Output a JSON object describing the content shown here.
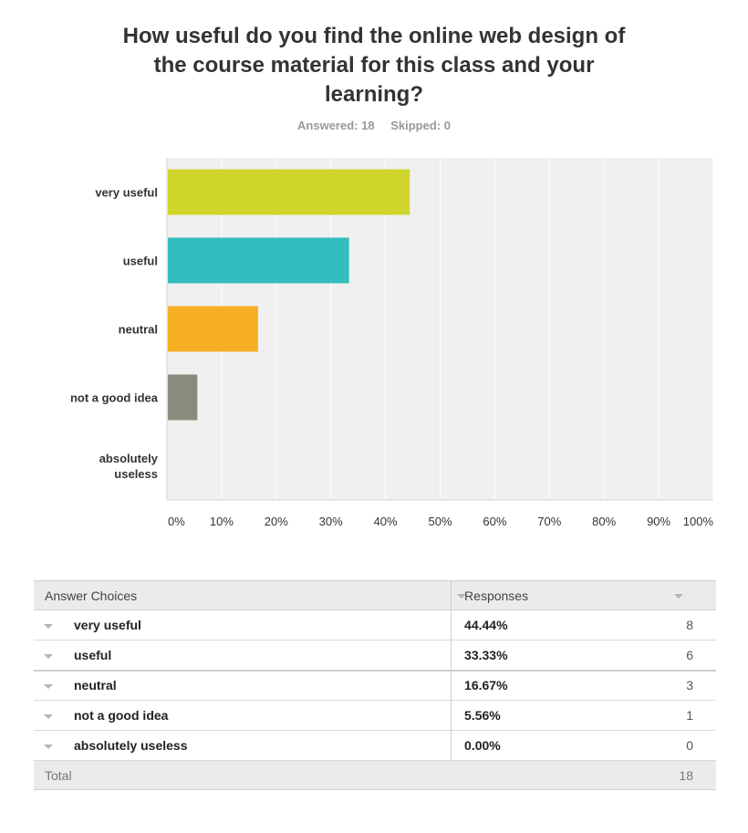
{
  "title": "How useful do you find the online web design of the course material for this class and your learning?",
  "answered": "Answered: 18",
  "skipped": "Skipped: 0",
  "chart_data": {
    "type": "bar",
    "orientation": "horizontal",
    "categories": [
      "very useful",
      "useful",
      "neutral",
      "not a good idea",
      "absolutely useless"
    ],
    "values": [
      44.44,
      33.33,
      16.67,
      5.56,
      0
    ],
    "colors": [
      "#cfd52a",
      "#33bdbf",
      "#f6ae22",
      "#8b8b7d",
      "#999999"
    ],
    "xlim": [
      0,
      100
    ],
    "xticks": [
      "0%",
      "10%",
      "20%",
      "30%",
      "40%",
      "50%",
      "60%",
      "70%",
      "80%",
      "90%",
      "100%"
    ],
    "grid": true,
    "background": "#f0f0f0"
  },
  "table": {
    "header": {
      "choices": "Answer Choices",
      "responses": "Responses"
    },
    "rows": [
      {
        "label": "very useful",
        "percent": "44.44%",
        "count": "8"
      },
      {
        "label": "useful",
        "percent": "33.33%",
        "count": "6"
      },
      {
        "label": "neutral",
        "percent": "16.67%",
        "count": "3"
      },
      {
        "label": "not a good idea",
        "percent": "5.56%",
        "count": "1"
      },
      {
        "label": "absolutely useless",
        "percent": "0.00%",
        "count": "0"
      }
    ],
    "total_label": "Total",
    "total": "18"
  }
}
